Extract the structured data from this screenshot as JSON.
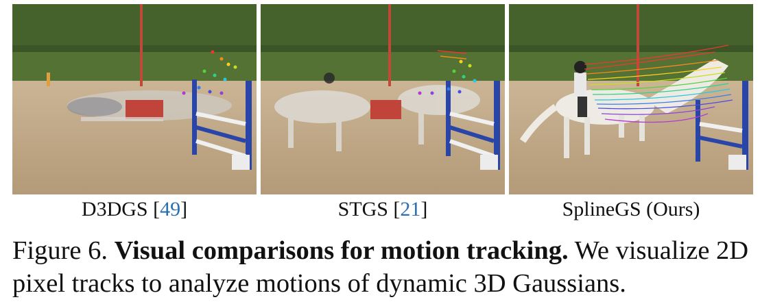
{
  "figure": {
    "panels": [
      {
        "method": "D3DGS",
        "ref_open": "[",
        "ref": "49",
        "ref_close": "]"
      },
      {
        "method": "STGS",
        "ref_open": "[",
        "ref": "21",
        "ref_close": "]"
      },
      {
        "method": "SplineGS (Ours)",
        "ref_open": "",
        "ref": "",
        "ref_close": ""
      }
    ],
    "caption": {
      "label": "Figure 6.",
      "title": "Visual comparisons for motion tracking.",
      "text": "We visualize 2D pixel tracks to analyze motions of dynamic 3D Gaussians."
    }
  },
  "colors": {
    "citation": "#2b6fb0",
    "sand": "#c9b08c",
    "foliage": "#3f5a2a",
    "hedge": "#4f6b2e",
    "horse": "#e8e4de",
    "fence_blue": "#2a45a8"
  }
}
